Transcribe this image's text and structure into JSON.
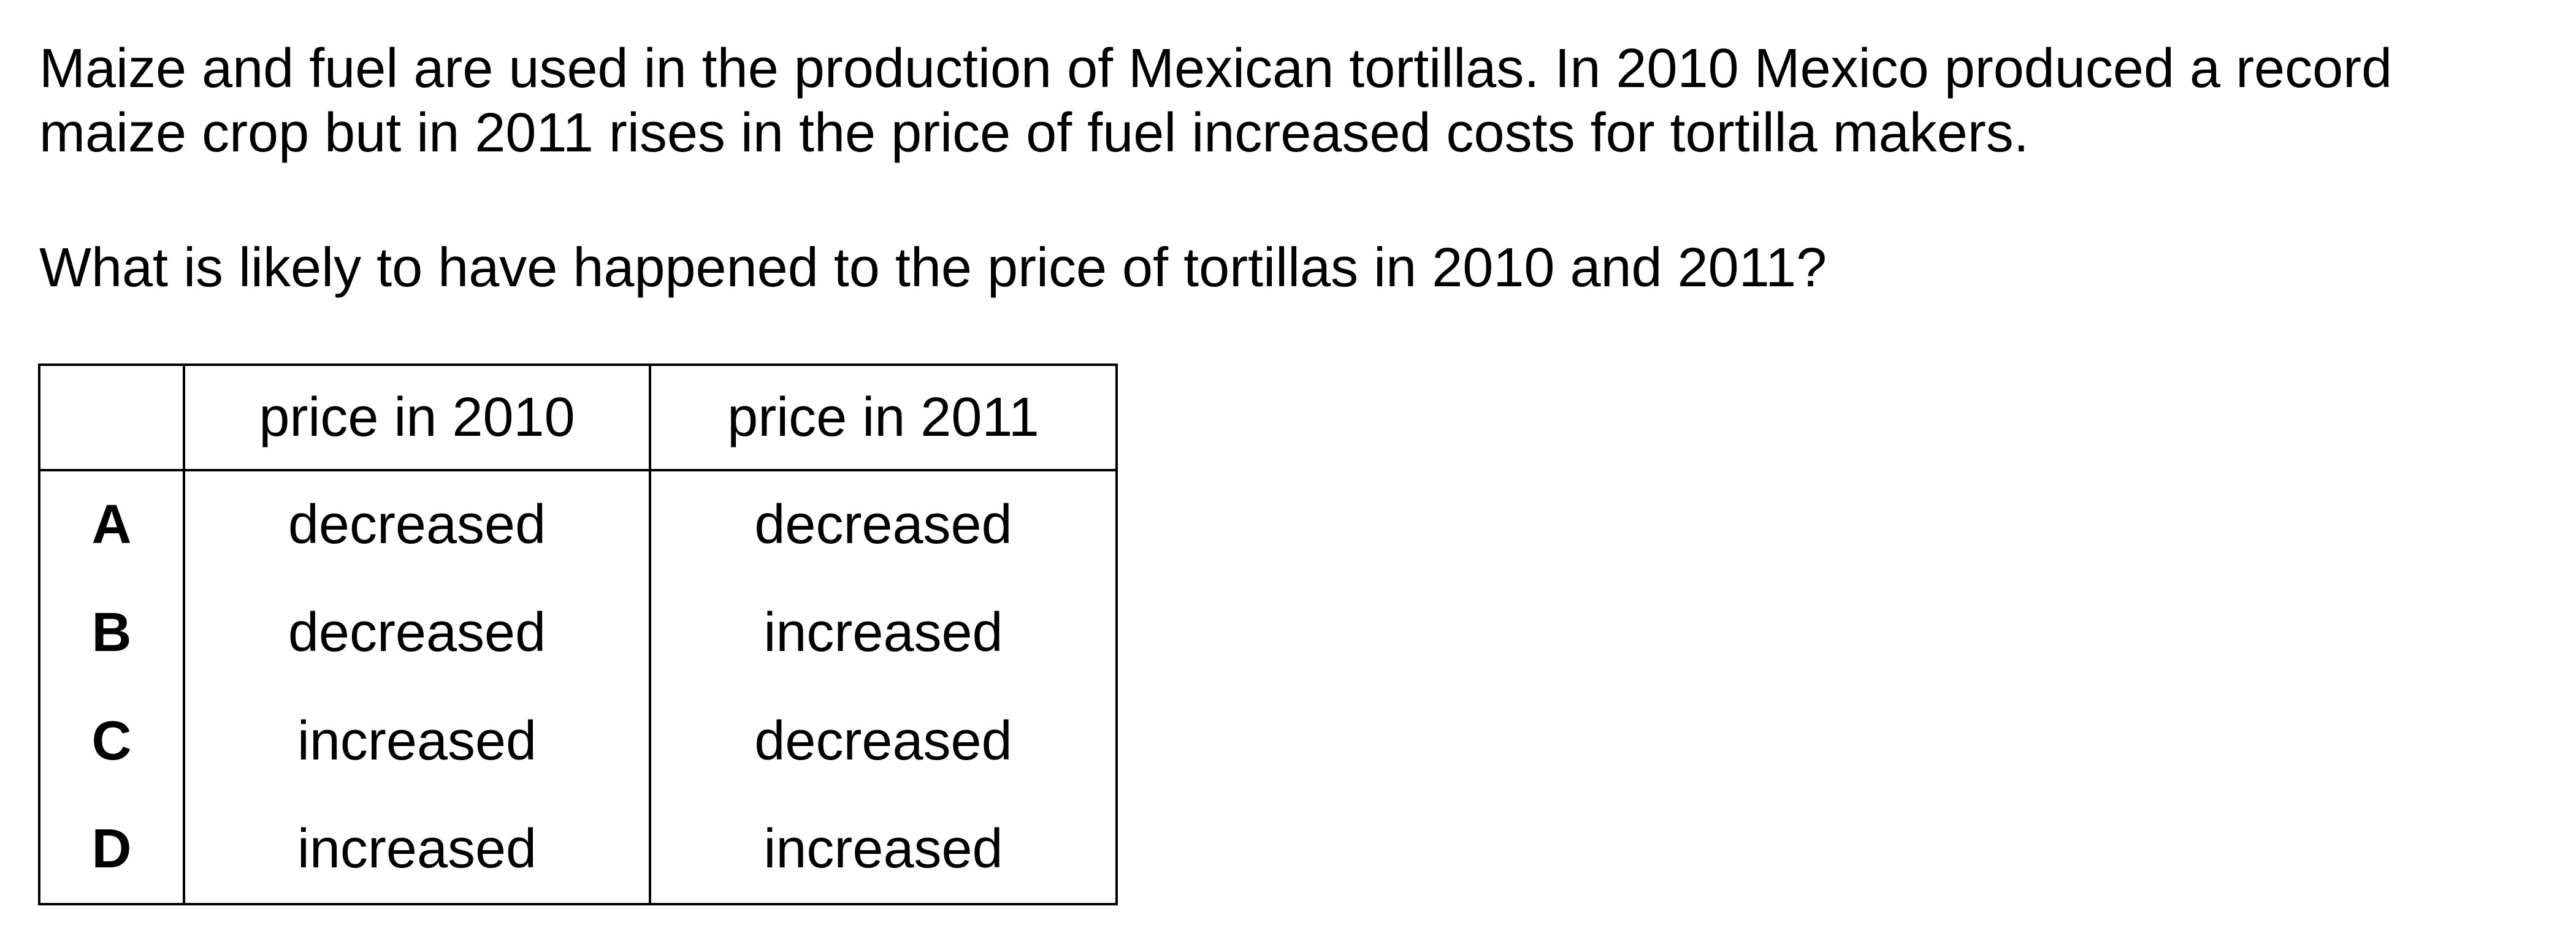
{
  "question": {
    "lines": [
      "Maize and fuel are used in the production of Mexican tortillas. In 2010 Mexico produced a record",
      "maize crop but in 2011 rises in the price of fuel increased costs for tortilla makers."
    ],
    "prompt": "What is likely to have happened to the price of tortillas in 2010 and 2011?"
  },
  "table": {
    "headers": [
      "",
      "price in 2010",
      "price in 2011"
    ],
    "rows": [
      {
        "letter": "A",
        "price_2010": "decreased",
        "price_2011": "decreased"
      },
      {
        "letter": "B",
        "price_2010": "decreased",
        "price_2011": "increased"
      },
      {
        "letter": "C",
        "price_2010": "increased",
        "price_2011": "decreased"
      },
      {
        "letter": "D",
        "price_2010": "increased",
        "price_2011": "increased"
      }
    ]
  }
}
